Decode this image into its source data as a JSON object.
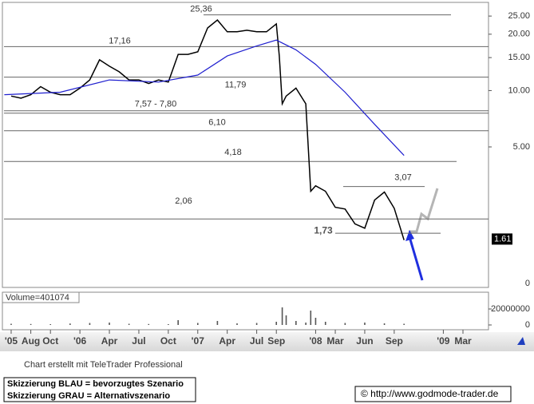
{
  "chart_data": [
    {
      "type": "line",
      "log_scale": true,
      "x": [
        0,
        1,
        2,
        3,
        4,
        5,
        6,
        7,
        8,
        9,
        10,
        11,
        12,
        13,
        14,
        15,
        16,
        17,
        18,
        19,
        20,
        21,
        22,
        23,
        24,
        25,
        26,
        27,
        27.3,
        27.6,
        28,
        29,
        30,
        30.5,
        31,
        32,
        33,
        34,
        35,
        36,
        37,
        38,
        39,
        40
      ],
      "series": [
        {
          "name": "Kurs",
          "color": "#000000",
          "values": [
            9.35,
            9.1,
            9.5,
            10.5,
            9.8,
            9.5,
            9.5,
            10.3,
            11.4,
            14.6,
            13.5,
            12.6,
            11.4,
            11.4,
            10.9,
            11.4,
            11.1,
            15.6,
            15.6,
            16.1,
            21.6,
            23.8,
            20.6,
            20.6,
            21,
            20.6,
            20.6,
            22.7,
            15.3,
            8.5,
            9.35,
            10.3,
            8.5,
            2.9,
            3.1,
            2.9,
            2.38,
            2.33,
            1.94,
            1.84,
            2.6,
            2.87,
            2.35,
            1.59
          ]
        },
        {
          "name": "GD",
          "color": "#1f1fcf",
          "x": [
            -0.7,
            5,
            10,
            15,
            19,
            22,
            25,
            27,
            29,
            31,
            34,
            37,
            40
          ],
          "values": [
            9.5,
            9.8,
            11.4,
            11.1,
            12.1,
            15.3,
            17.3,
            18.6,
            16.5,
            13.8,
            9.8,
            6.6,
            4.5
          ]
        }
      ],
      "levels": [
        {
          "value": 25.36,
          "label": "25,36"
        },
        {
          "value": 17.16,
          "label": "17,16"
        },
        {
          "value": 11.79,
          "label": "11,79"
        },
        {
          "values": [
            7.57,
            7.8
          ],
          "label": "7,57 - 7,80"
        },
        {
          "value": 6.1,
          "label": "6,10"
        },
        {
          "value": 4.18,
          "label": "4,18"
        },
        {
          "value": 3.07,
          "label": "3,07"
        },
        {
          "value": 2.06,
          "label": "2,06"
        },
        {
          "value": 1.73,
          "label": "1,73"
        }
      ],
      "last_price": 1.61,
      "y_floor_label": "0",
      "ylim": [
        0.888,
        29
      ],
      "yticks": [
        {
          "value": 25,
          "label": "25.00"
        },
        {
          "value": 20,
          "label": "20.00"
        },
        {
          "value": 15,
          "label": "15.00"
        },
        {
          "value": 10,
          "label": "10.00"
        },
        {
          "value": 5,
          "label": "5.00"
        }
      ],
      "xlim": [
        -0.73,
        48.6
      ],
      "xticks": [
        {
          "value": 0,
          "label": "'05"
        },
        {
          "value": 2,
          "label": "Aug"
        },
        {
          "value": 4,
          "label": "Oct"
        },
        {
          "value": 7,
          "label": "'06"
        },
        {
          "value": 10,
          "label": "Apr"
        },
        {
          "value": 13,
          "label": "Jul"
        },
        {
          "value": 16,
          "label": "Oct"
        },
        {
          "value": 19,
          "label": "'07"
        },
        {
          "value": 22,
          "label": "Apr"
        },
        {
          "value": 25,
          "label": "Jul"
        },
        {
          "value": 27,
          "label": "Sep"
        },
        {
          "value": 31,
          "label": "'08"
        },
        {
          "value": 33,
          "label": "Mar"
        },
        {
          "value": 36,
          "label": "Jun"
        },
        {
          "value": 39,
          "label": "Sep"
        },
        {
          "value": 44,
          "label": "'09"
        },
        {
          "value": 46,
          "label": "Mar"
        }
      ]
    },
    {
      "type": "bar",
      "title": "Volume=401074",
      "color": "#555555",
      "x": [
        0,
        2,
        4,
        6,
        8,
        10,
        12,
        14,
        16,
        17,
        19,
        21,
        23,
        25,
        27,
        27.6,
        28,
        29,
        30,
        30.5,
        31,
        32,
        34,
        36,
        38,
        40
      ],
      "values": [
        1500000,
        1200000,
        1000000,
        1800000,
        2500000,
        3000000,
        1500000,
        1200000,
        1000000,
        6000000,
        2500000,
        5000000,
        2000000,
        2500000,
        4000000,
        22000000,
        12000000,
        5000000,
        3000000,
        18000000,
        9000000,
        4000000,
        2500000,
        3000000,
        2000000,
        1500000
      ],
      "ylim": [
        -5000000,
        41000000
      ],
      "yticks": [
        0,
        20000000
      ]
    }
  ],
  "footer": {
    "credit": "Chart erstellt mit TeleTrader Professional",
    "legend": [
      "Skizzierung BLAU = bevorzugtes Szenario",
      "Skizzierung GRAU = Alternativszenario"
    ],
    "source": "© http://www.godmode-trader.de"
  }
}
